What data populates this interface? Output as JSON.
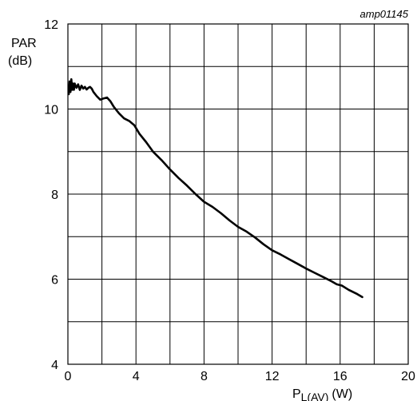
{
  "figure_ref": "amp01145",
  "chart_data": {
    "type": "line",
    "ylabel_line1": "PAR",
    "ylabel_line2": "(dB)",
    "xlabel_main": "P",
    "xlabel_sub": "L(AV)",
    "xlabel_unit": "(W)",
    "xlim": [
      0,
      20
    ],
    "ylim": [
      4,
      12
    ],
    "x_ticks": [
      0,
      4,
      8,
      12,
      16,
      20
    ],
    "y_ticks": [
      4,
      6,
      8,
      10,
      12
    ],
    "grid": true,
    "line_color": "#000000",
    "series": [
      {
        "x": [
          0.05,
          0.1,
          0.15,
          0.2,
          0.25,
          0.3,
          0.35,
          0.4,
          0.5,
          0.6,
          0.7,
          0.8,
          0.9,
          1.0,
          1.1,
          1.2,
          1.3,
          1.4,
          1.5,
          1.7,
          1.9,
          2.1,
          2.3,
          2.5,
          2.7,
          3.0,
          3.3,
          3.6,
          3.9,
          4.2,
          4.6,
          5.0,
          5.5,
          6.0,
          6.5,
          7.0,
          7.5,
          8.0,
          8.5,
          9.0,
          9.5,
          10.0,
          10.5,
          11.0,
          11.5,
          12.0,
          12.5,
          13.0,
          13.5,
          14.0,
          14.5,
          15.0,
          15.5,
          15.8,
          16.1,
          16.5,
          17.0,
          17.3
        ],
        "y": [
          10.35,
          10.65,
          10.4,
          10.7,
          10.45,
          10.6,
          10.45,
          10.6,
          10.5,
          10.58,
          10.45,
          10.55,
          10.48,
          10.52,
          10.46,
          10.5,
          10.52,
          10.48,
          10.4,
          10.3,
          10.22,
          10.25,
          10.27,
          10.18,
          10.05,
          9.9,
          9.78,
          9.72,
          9.62,
          9.42,
          9.22,
          9.0,
          8.8,
          8.58,
          8.38,
          8.2,
          8.0,
          7.82,
          7.7,
          7.55,
          7.38,
          7.23,
          7.12,
          6.98,
          6.82,
          6.68,
          6.58,
          6.47,
          6.36,
          6.25,
          6.15,
          6.05,
          5.95,
          5.88,
          5.85,
          5.75,
          5.65,
          5.58
        ]
      }
    ]
  }
}
